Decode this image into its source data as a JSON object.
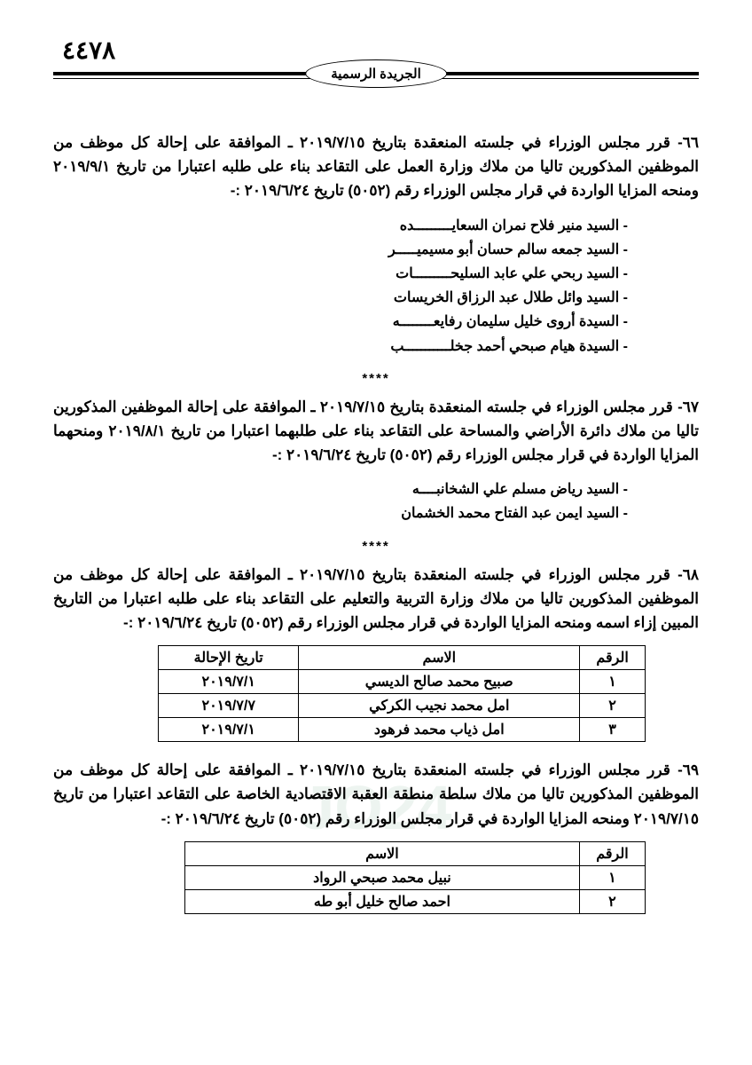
{
  "page_number": "٤٤٧٨",
  "gazette_title": "الجريدة الرسمية",
  "separator": "****",
  "items": [
    {
      "number": "٦٦-",
      "text": "قرر مجلس الوزراء في جلسته المنعقدة بتاريخ ٢٠١٩/٧/١٥ ـ الموافقة على إحالة كل موظف من الموظفين المذكورين تاليا من ملاك وزارة العمل على التقاعد بناء على طلبه اعتبارا من تاريخ ٢٠١٩/٩/١ ومنحه المزايا الواردة في قرار مجلس الوزراء رقم (٥٠٥٢) تاريخ ٢٠١٩/٦/٢٤ :-",
      "names": [
        "السيد منير فلاح نمران السعايـــــــــده",
        "السيد جمعه سالم حسان أبو مسيميـــــر",
        "السيد ربحي علي عابد السليحـــــــــات",
        "السيد وائل طلال عبد الرزاق الخريسات",
        "السيدة أروى خليل سليمان رفايعــــــــه",
        "السيدة هيام صبحي أحمد جخلـــــــــــب"
      ]
    },
    {
      "number": "٦٧-",
      "text": "قرر مجلس الوزراء في جلسته المنعقدة بتاريخ  ٢٠١٩/٧/١٥ ـ الموافقة على إحالة الموظفين المذكورين تاليا من ملاك دائرة الأراضي والمساحة على التقاعد بناء على طلبهما اعتبارا من تاريخ ٢٠١٩/٨/١ ومنحهما المزايا الواردة في قرار مجلس الوزراء رقم (٥٠٥٢) تاريخ ٢٠١٩/٦/٢٤ :-",
      "names": [
        "السيد رياض مسلم علي الشخانبــــه",
        "السيد ايمن عبد الفتاح محمد الخشمان"
      ]
    },
    {
      "number": "٦٨-",
      "text": "قرر مجلس الوزراء في جلسته المنعقدة بتاريخ ٢٠١٩/٧/١٥  ـ الموافقة على إحالة كل موظف من الموظفين المذكورين تاليا من ملاك وزارة التربية والتعليم على التقاعد بناء على طلبه اعتبارا من التاريخ المبين إزاء اسمه ومنحه المزايا الواردة في قرار مجلس الوزراء رقم (٥٠٥٢) تاريخ ٢٠١٩/٦/٢٤ :-"
    },
    {
      "number": "٦٩-",
      "text": "قرر مجلس الوزراء في جلسته المنعقدة بتاريخ  ٢٠١٩/٧/١٥ ـ الموافقة على إحالة كل موظف من الموظفين المذكورين تاليا من ملاك سلطة منطقة العقبة الاقتصادية الخاصة  على التقاعد اعتبارا من تاريخ ٢٠١٩/٧/١٥ ومنحه المزايا الواردة في قرار مجلس الوزراء رقم (٥٠٥٢) تاريخ ٢٠١٩/٦/٢٤ :-"
    }
  ],
  "table1": {
    "headers": {
      "num": "الرقم",
      "name": "الاسم",
      "date": "تاريخ الإحالة"
    },
    "rows": [
      {
        "num": "١",
        "name": "صبيح محمد صالح الديسي",
        "date": "٢٠١٩/٧/١"
      },
      {
        "num": "٢",
        "name": "امل محمد نجيب الكركي",
        "date": "٢٠١٩/٧/٧"
      },
      {
        "num": "٣",
        "name": "امل ذياب محمد فرهود",
        "date": "٢٠١٩/٧/١"
      }
    ]
  },
  "table2": {
    "headers": {
      "num": "الرقم",
      "name": "الاسم"
    },
    "rows": [
      {
        "num": "١",
        "name": "نبيل محمد صبحي الرواد"
      },
      {
        "num": "٢",
        "name": "احمد صالح خليل أبو طه"
      }
    ]
  },
  "watermark": "JO24"
}
